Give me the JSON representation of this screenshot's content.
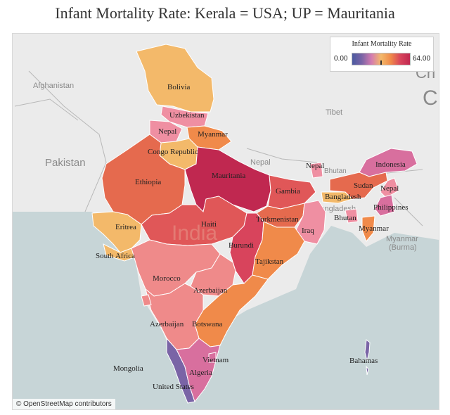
{
  "title": "Infant Mortality Rate: Kerala = USA; UP = Mauritania",
  "legend": {
    "title": "Infant Mortality Rate",
    "min_label": "0.00",
    "max_label": "64.00",
    "colors": [
      "#4b5aa0",
      "#7a64a6",
      "#d47bb0",
      "#f3b96a",
      "#f08a4a",
      "#d8445c",
      "#c02850"
    ]
  },
  "attribution": "© OpenStreetMap contributors",
  "map": {
    "background_labels": [
      "Afghanistan",
      "Pakistan",
      "Tibet",
      "Nepal",
      "Bhutan",
      "Bangladesh",
      "Myanmar (Burma)",
      "India",
      "Ch",
      "Cl"
    ],
    "states": [
      {
        "name": "Jammu & Kashmir",
        "label": "Bolivia",
        "color": "#f3b96a"
      },
      {
        "name": "Himachal Pradesh",
        "label": "Uzbekistan",
        "color": "#ef8fa2"
      },
      {
        "name": "Punjab",
        "label": "Nepal",
        "color": "#ef8fa2"
      },
      {
        "name": "Uttarakhand",
        "label": "Myanmar",
        "color": "#f08a4a"
      },
      {
        "name": "Haryana",
        "label": "Congo Republic",
        "color": "#f3b96a"
      },
      {
        "name": "Rajasthan",
        "label": "Ethiopia",
        "color": "#e56a4e"
      },
      {
        "name": "Uttar Pradesh",
        "label": "Mauritania",
        "color": "#c02850"
      },
      {
        "name": "Bihar",
        "label": "Gambia",
        "color": "#e05758"
      },
      {
        "name": "Sikkim",
        "label": "Nepal",
        "color": "#ef8fa2"
      },
      {
        "name": "Arunachal Pradesh",
        "label": "Indonesia",
        "color": "#d86f9e"
      },
      {
        "name": "Assam",
        "label": "Sudan",
        "color": "#e56a4e"
      },
      {
        "name": "Nagaland",
        "label": "Nepal",
        "color": "#ef8fa2"
      },
      {
        "name": "Meghalaya",
        "label": "Bangladesh",
        "color": "#f3b96a"
      },
      {
        "name": "Manipur",
        "label": "Philippines",
        "color": "#d86f9e"
      },
      {
        "name": "Tripura",
        "label": "Bhutan",
        "color": "#ef8fa2"
      },
      {
        "name": "Mizoram",
        "label": "Myanmar",
        "color": "#f08a4a"
      },
      {
        "name": "Gujarat",
        "label": "Eritrea",
        "color": "#f3b96a"
      },
      {
        "name": "Diu",
        "label": "South Africa",
        "color": "#f3b96a"
      },
      {
        "name": "Madhya Pradesh",
        "label": "Haiti",
        "color": "#e05758"
      },
      {
        "name": "Jharkhand",
        "label": "Turkmenistan",
        "color": "#e56a4e"
      },
      {
        "name": "West Bengal",
        "label": "Iraq",
        "color": "#ef8fa2"
      },
      {
        "name": "Chhattisgarh",
        "label": "Burundi",
        "color": "#d8445c"
      },
      {
        "name": "Odisha",
        "label": "Tajikstan",
        "color": "#f08a4a"
      },
      {
        "name": "Maharashtra",
        "label": "Morocco",
        "color": "#ef8a8a"
      },
      {
        "name": "Telangana",
        "label": "Azerbaijan",
        "color": "#ef8a8a"
      },
      {
        "name": "Andhra Pradesh",
        "label": "Botswana",
        "color": "#f08a4a"
      },
      {
        "name": "Karnataka",
        "label": "Azerbaijan",
        "color": "#ef8a8a"
      },
      {
        "name": "Goa",
        "label": "Mongolia",
        "color": "#ef8a8a"
      },
      {
        "name": "Kerala",
        "label": "United States",
        "color": "#7a64a6"
      },
      {
        "name": "Tamil Nadu",
        "label": "Algeria",
        "color": "#d86f9e"
      },
      {
        "name": "Puducherry",
        "label": "Vietnam",
        "color": "#d86f9e"
      },
      {
        "name": "Andaman & Nicobar",
        "label": "Bahamas",
        "color": "#7a64a6"
      }
    ]
  }
}
